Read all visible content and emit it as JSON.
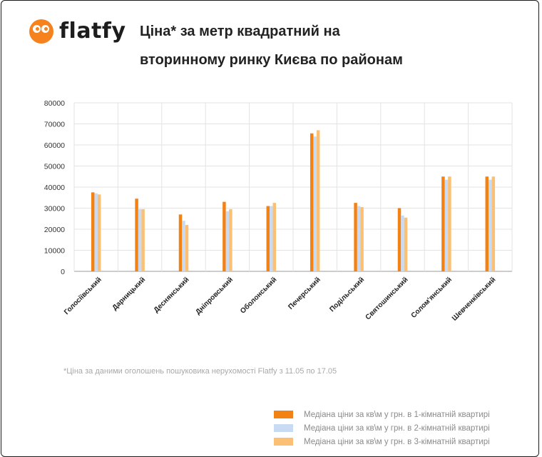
{
  "brand": {
    "name": "flatfy"
  },
  "title": {
    "line1": "Ціна* за метр квадратний на",
    "line2": "вторинному ринку Києва по районам"
  },
  "footnote": "*Ціна за даними оголошень пошуковика нерухомості Flatfy з 11.05 по 17.05",
  "colors": {
    "accent": "#f5821f",
    "series1": "#f38215",
    "series2": "#c9dbf2",
    "series3": "#fbc074"
  },
  "chart_data": {
    "type": "bar",
    "categories": [
      "Голосіївський",
      "Дарницький",
      "Деснянський",
      "Дніпровський",
      "Оболонський",
      "Печерський",
      "Подільський",
      "Святошинський",
      "Солом'янський",
      "Шевченківський"
    ],
    "series": [
      {
        "name": "Медіана ціни за кв\\м у грн. в 1-кімнатній квартирі",
        "values": [
          37500,
          34500,
          27000,
          33000,
          31000,
          65500,
          32500,
          30000,
          45000,
          45000
        ]
      },
      {
        "name": "Медіана ціни за кв\\м у грн. в 2-кімнатній квартирі",
        "values": [
          37000,
          29500,
          24000,
          28500,
          31000,
          64000,
          31000,
          26500,
          43500,
          43500
        ]
      },
      {
        "name": "Медіана ціни за кв\\м у грн. в 3-кімнатній квартирі",
        "values": [
          36500,
          29500,
          22000,
          29500,
          32500,
          67000,
          30500,
          25500,
          45000,
          45000
        ]
      }
    ],
    "ylim": [
      0,
      80000
    ],
    "yticks": [
      0,
      10000,
      20000,
      30000,
      40000,
      50000,
      60000,
      70000,
      80000
    ],
    "grid": true,
    "legend_position": "bottom-right"
  }
}
